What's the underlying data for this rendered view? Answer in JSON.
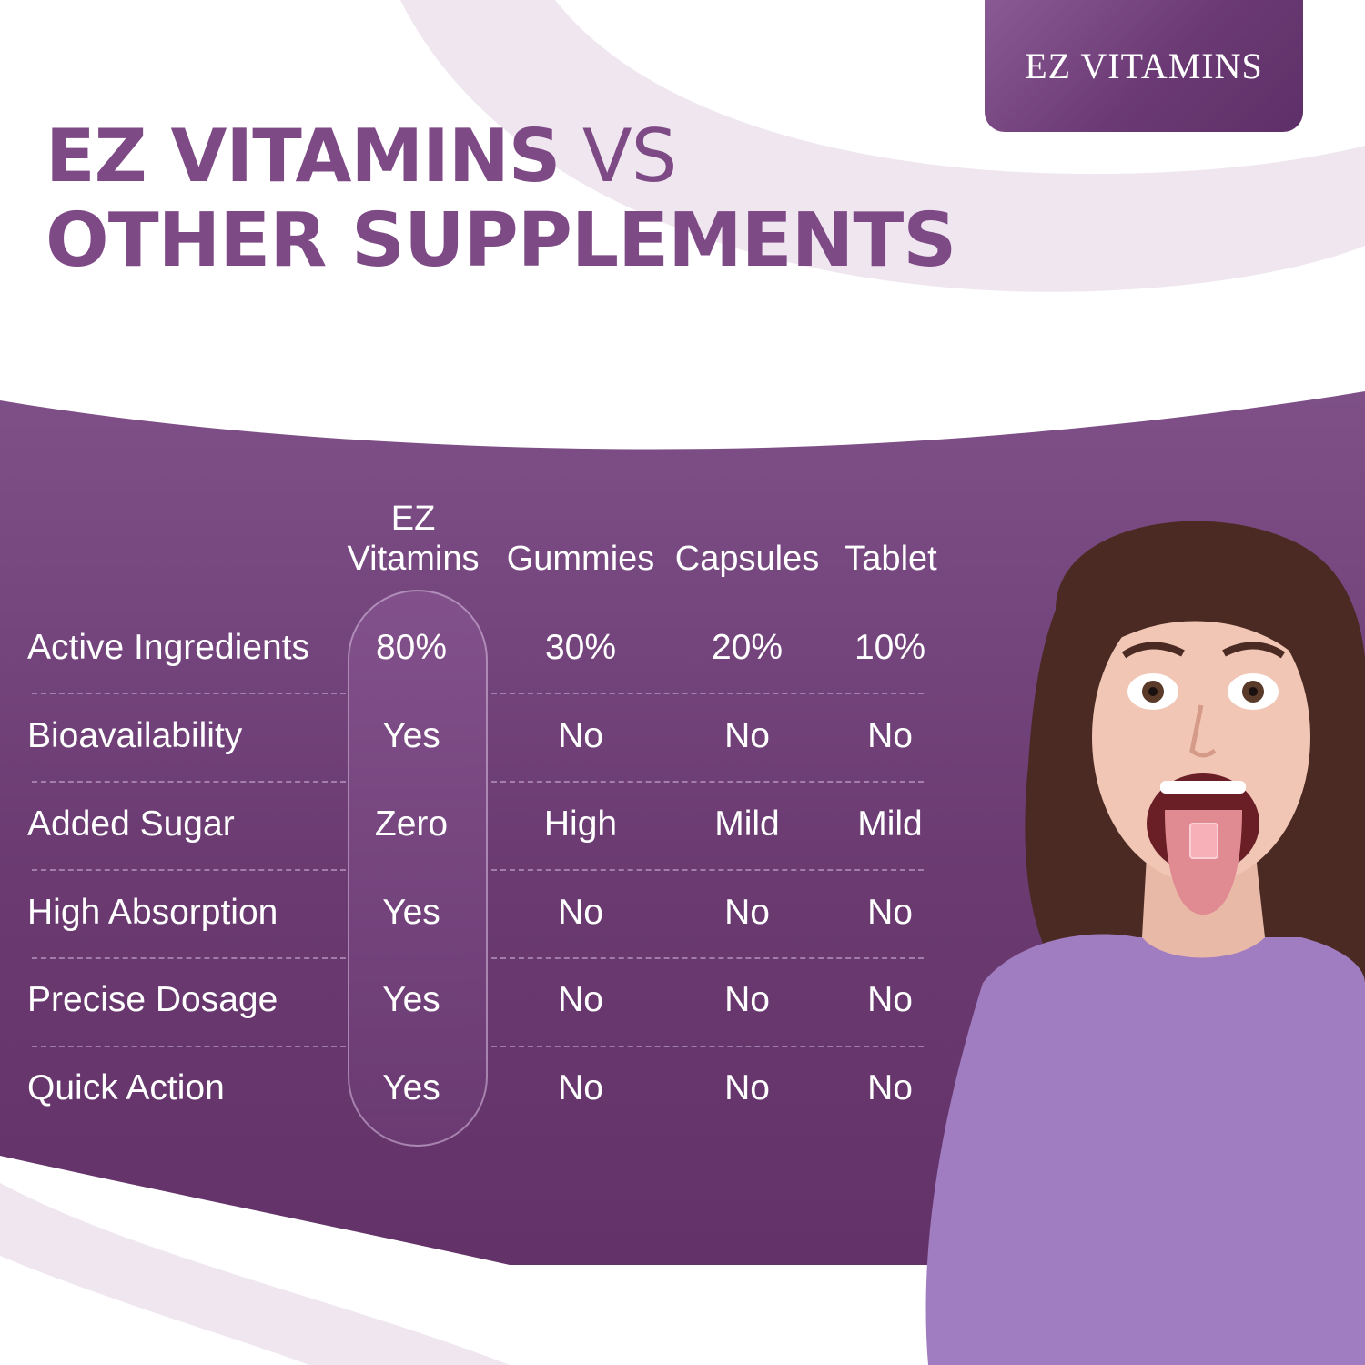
{
  "brand": {
    "badge_text": "EZ VITAMINS"
  },
  "headline": {
    "line1_bold": "EZ VITAMINS",
    "line1_light": "VS",
    "line2": "OTHER SUPPLEMENTS"
  },
  "table": {
    "columns": [
      "EZ Vitamins",
      "Gummies",
      "Capsules",
      "Tablet"
    ],
    "column_ez_line1": "EZ",
    "column_ez_line2": "Vitamins",
    "rows": [
      {
        "label": "Active Ingredients",
        "values": [
          "80%",
          "30%",
          "20%",
          "10%"
        ]
      },
      {
        "label": "Bioavailability",
        "values": [
          "Yes",
          "No",
          "No",
          "No"
        ]
      },
      {
        "label": "Added Sugar",
        "values": [
          "Zero",
          "High",
          "Mild",
          "Mild"
        ]
      },
      {
        "label": "High Absorption",
        "values": [
          "Yes",
          "No",
          "No",
          "No"
        ]
      },
      {
        "label": "Precise Dosage",
        "values": [
          "Yes",
          "No",
          "No",
          "No"
        ]
      },
      {
        "label": "Quick Action",
        "values": [
          "Yes",
          "No",
          "No",
          "No"
        ]
      }
    ]
  },
  "colors": {
    "brand_purple": "#7e4a86",
    "panel_purple": "#6b3a72",
    "decor_lilac": "#efe6f0",
    "shirt_purple": "#a07cc0"
  },
  "image": {
    "person_icon": "woman-tongue-out-photo"
  }
}
